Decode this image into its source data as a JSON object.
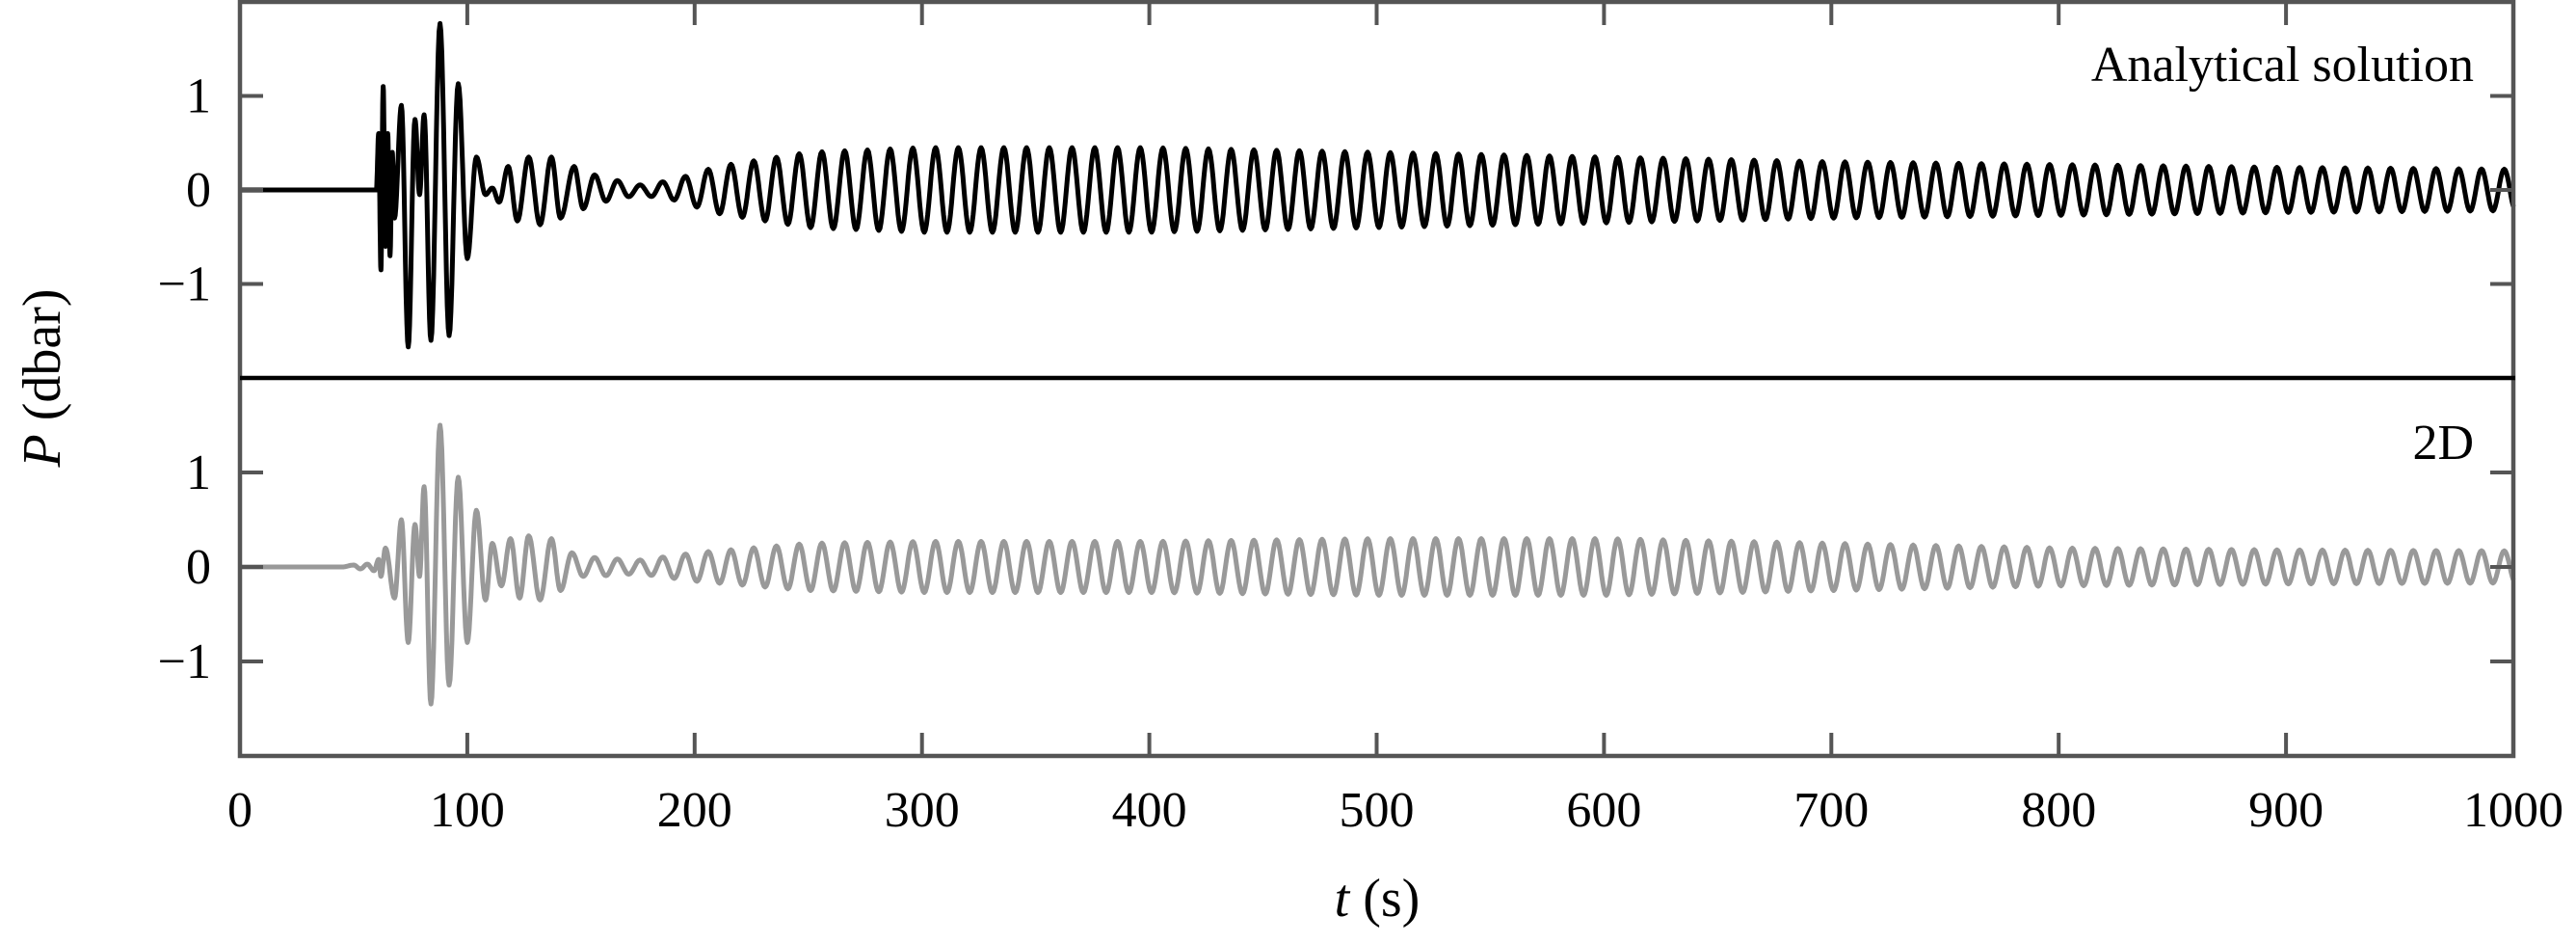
{
  "chart_data": {
    "type": "line",
    "xlabel_italic": "t",
    "xlabel_unit": " (s)",
    "ylabel_italic": "P",
    "ylabel_unit": " (dbar)",
    "xlim": [
      0,
      1000
    ],
    "xticks": [
      "0",
      "100",
      "200",
      "300",
      "400",
      "500",
      "600",
      "700",
      "800",
      "900",
      "1000"
    ],
    "xtick_values": [
      0,
      100,
      200,
      300,
      400,
      500,
      600,
      700,
      800,
      900,
      1000
    ],
    "grid": false,
    "panels": [
      {
        "label": "Analytical solution",
        "color": "#000000",
        "ylim": [
          -2,
          2
        ],
        "yticks": [
          "1",
          "0",
          "−1"
        ],
        "ytick_values": [
          1,
          0,
          -1
        ],
        "onset_s": 60,
        "extrema": [
          [
            60,
            0
          ],
          [
            61,
            0.6
          ],
          [
            62,
            -0.85
          ],
          [
            63,
            1.1
          ],
          [
            64,
            -0.6
          ],
          [
            65,
            0.6
          ],
          [
            66,
            -0.7
          ],
          [
            67,
            0.4
          ],
          [
            68,
            -0.3
          ],
          [
            71,
            0.9
          ],
          [
            74,
            -1.67
          ],
          [
            77,
            0.75
          ],
          [
            79,
            -0.05
          ],
          [
            81,
            0.8
          ],
          [
            84,
            -1.6
          ],
          [
            88,
            1.77
          ],
          [
            92,
            -1.55
          ],
          [
            96,
            1.13
          ],
          [
            100,
            -0.73
          ],
          [
            104,
            0.35
          ],
          [
            108,
            -0.05
          ],
          [
            111,
            0.02
          ],
          [
            114,
            -0.13
          ],
          [
            118,
            0.25
          ],
          [
            122,
            -0.33
          ],
          [
            127,
            0.35
          ],
          [
            132,
            -0.37
          ],
          [
            137,
            0.35
          ],
          [
            141,
            -0.3
          ],
          [
            147,
            0.25
          ],
          [
            151,
            -0.2
          ],
          [
            156,
            0.16
          ],
          [
            161,
            -0.12
          ]
        ],
        "period_s": 10,
        "envelope": [
          [
            166,
            0.1
          ],
          [
            175,
            0.05
          ],
          [
            190,
            0.1
          ],
          [
            210,
            0.25
          ],
          [
            250,
            0.4
          ],
          [
            300,
            0.45
          ],
          [
            400,
            0.45
          ],
          [
            500,
            0.4
          ],
          [
            600,
            0.35
          ],
          [
            700,
            0.3
          ],
          [
            800,
            0.27
          ],
          [
            900,
            0.24
          ],
          [
            1000,
            0.22
          ]
        ]
      },
      {
        "label": "2D",
        "color": "#999999",
        "ylim": [
          -2,
          2
        ],
        "yticks": [
          "1",
          "0",
          "−1"
        ],
        "ytick_values": [
          1,
          0,
          -1
        ],
        "onset_s": 45,
        "extrema": [
          [
            45,
            0
          ],
          [
            50,
            0.02
          ],
          [
            53,
            -0.02
          ],
          [
            56,
            0.03
          ],
          [
            59,
            -0.04
          ],
          [
            61,
            0.08
          ],
          [
            62,
            -0.1
          ],
          [
            64,
            0.2
          ],
          [
            68,
            -0.33
          ],
          [
            71,
            0.5
          ],
          [
            74,
            -0.8
          ],
          [
            77,
            0.45
          ],
          [
            79,
            -0.1
          ],
          [
            81,
            0.85
          ],
          [
            84,
            -1.45
          ],
          [
            88,
            1.5
          ],
          [
            92,
            -1.25
          ],
          [
            96,
            0.95
          ],
          [
            100,
            -0.8
          ],
          [
            104,
            0.6
          ],
          [
            108,
            -0.35
          ],
          [
            111,
            0.25
          ],
          [
            115,
            -0.2
          ],
          [
            119,
            0.3
          ],
          [
            123,
            -0.33
          ],
          [
            127,
            0.33
          ],
          [
            132,
            -0.35
          ],
          [
            137,
            0.3
          ],
          [
            141,
            -0.25
          ],
          [
            146,
            0.15
          ],
          [
            151,
            -0.1
          ]
        ],
        "period_s": 10,
        "envelope": [
          [
            156,
            0.1
          ],
          [
            175,
            0.07
          ],
          [
            200,
            0.15
          ],
          [
            250,
            0.25
          ],
          [
            300,
            0.27
          ],
          [
            400,
            0.27
          ],
          [
            500,
            0.3
          ],
          [
            600,
            0.3
          ],
          [
            700,
            0.25
          ],
          [
            800,
            0.2
          ],
          [
            900,
            0.18
          ],
          [
            1000,
            0.17
          ]
        ]
      }
    ]
  }
}
